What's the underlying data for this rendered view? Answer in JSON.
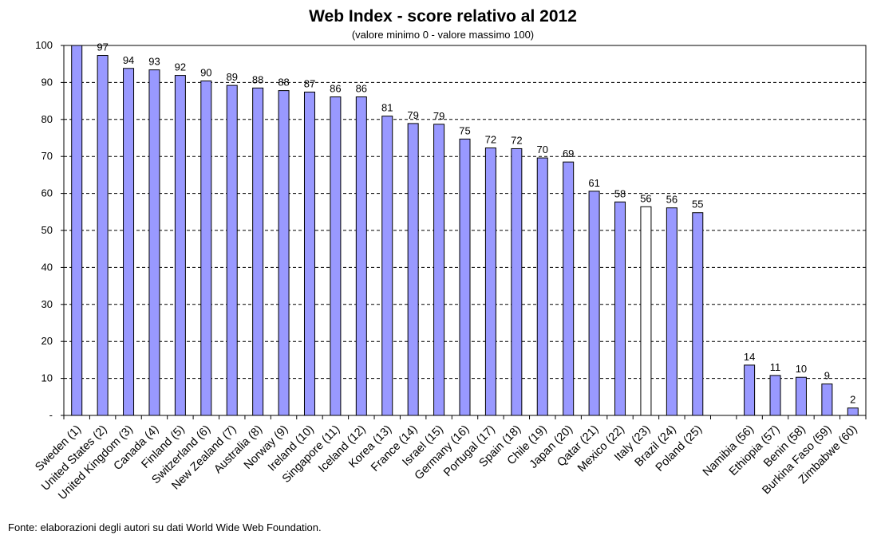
{
  "chart_data": {
    "type": "bar",
    "title": "Web Index - score relativo al 2012",
    "subtitle": "(valore minimo 0 - valore massimo 100)",
    "source": "Fonte: elaborazioni degli autori su dati World Wide Web Foundation.",
    "ylim": [
      0,
      100
    ],
    "yticks": [
      0,
      10,
      20,
      30,
      40,
      50,
      60,
      70,
      80,
      90,
      100
    ],
    "ytick_labels": [
      "-",
      "10",
      "20",
      "30",
      "40",
      "50",
      "60",
      "70",
      "80",
      "90",
      "100"
    ],
    "grid": "horizontal dashed",
    "colors": {
      "bar": "#9999ff",
      "highlight": "#ffffff",
      "stroke": "#000000"
    },
    "highlight_category": "Italy (23)",
    "categories": [
      "Sweden (1)",
      "United States (2)",
      "United Kingdom (3)",
      "Canada (4)",
      "Finland (5)",
      "Switzerland (6)",
      "New Zealand (7)",
      "Australia (8)",
      "Norway (9)",
      "Ireland (10)",
      "Singapore (11)",
      "Iceland (12)",
      "Korea (13)",
      "France (14)",
      "Israel (15)",
      "Germany (16)",
      "Portugal (17)",
      "Spain (18)",
      "Chile (19)",
      "Japan (20)",
      "Qatar (21)",
      "Mexico (22)",
      "Italy (23)",
      "Brazil (24)",
      "Poland (25)",
      "",
      "Namibia (56)",
      "Ethiopia (57)",
      "Benin (58)",
      "Burkina Faso (59)",
      "Zimbabwe (60)"
    ],
    "values": [
      100,
      97.3,
      93.8,
      93.4,
      91.9,
      90.4,
      89.2,
      88.5,
      87.8,
      87.4,
      86.1,
      86.1,
      80.9,
      78.9,
      78.7,
      74.7,
      72.3,
      72.1,
      69.6,
      68.5,
      60.6,
      57.7,
      56.4,
      56.1,
      54.8,
      null,
      13.6,
      10.8,
      10.3,
      8.5,
      2.0
    ],
    "labels": [
      "",
      "97",
      "94",
      "93",
      "92",
      "90",
      "89",
      "88",
      "88",
      "87",
      "86",
      "86",
      "81",
      "79",
      "79",
      "75",
      "72",
      "72",
      "70",
      "69",
      "61",
      "58",
      "56",
      "56",
      "55",
      "",
      "14",
      "11",
      "10",
      "9",
      "2"
    ]
  }
}
